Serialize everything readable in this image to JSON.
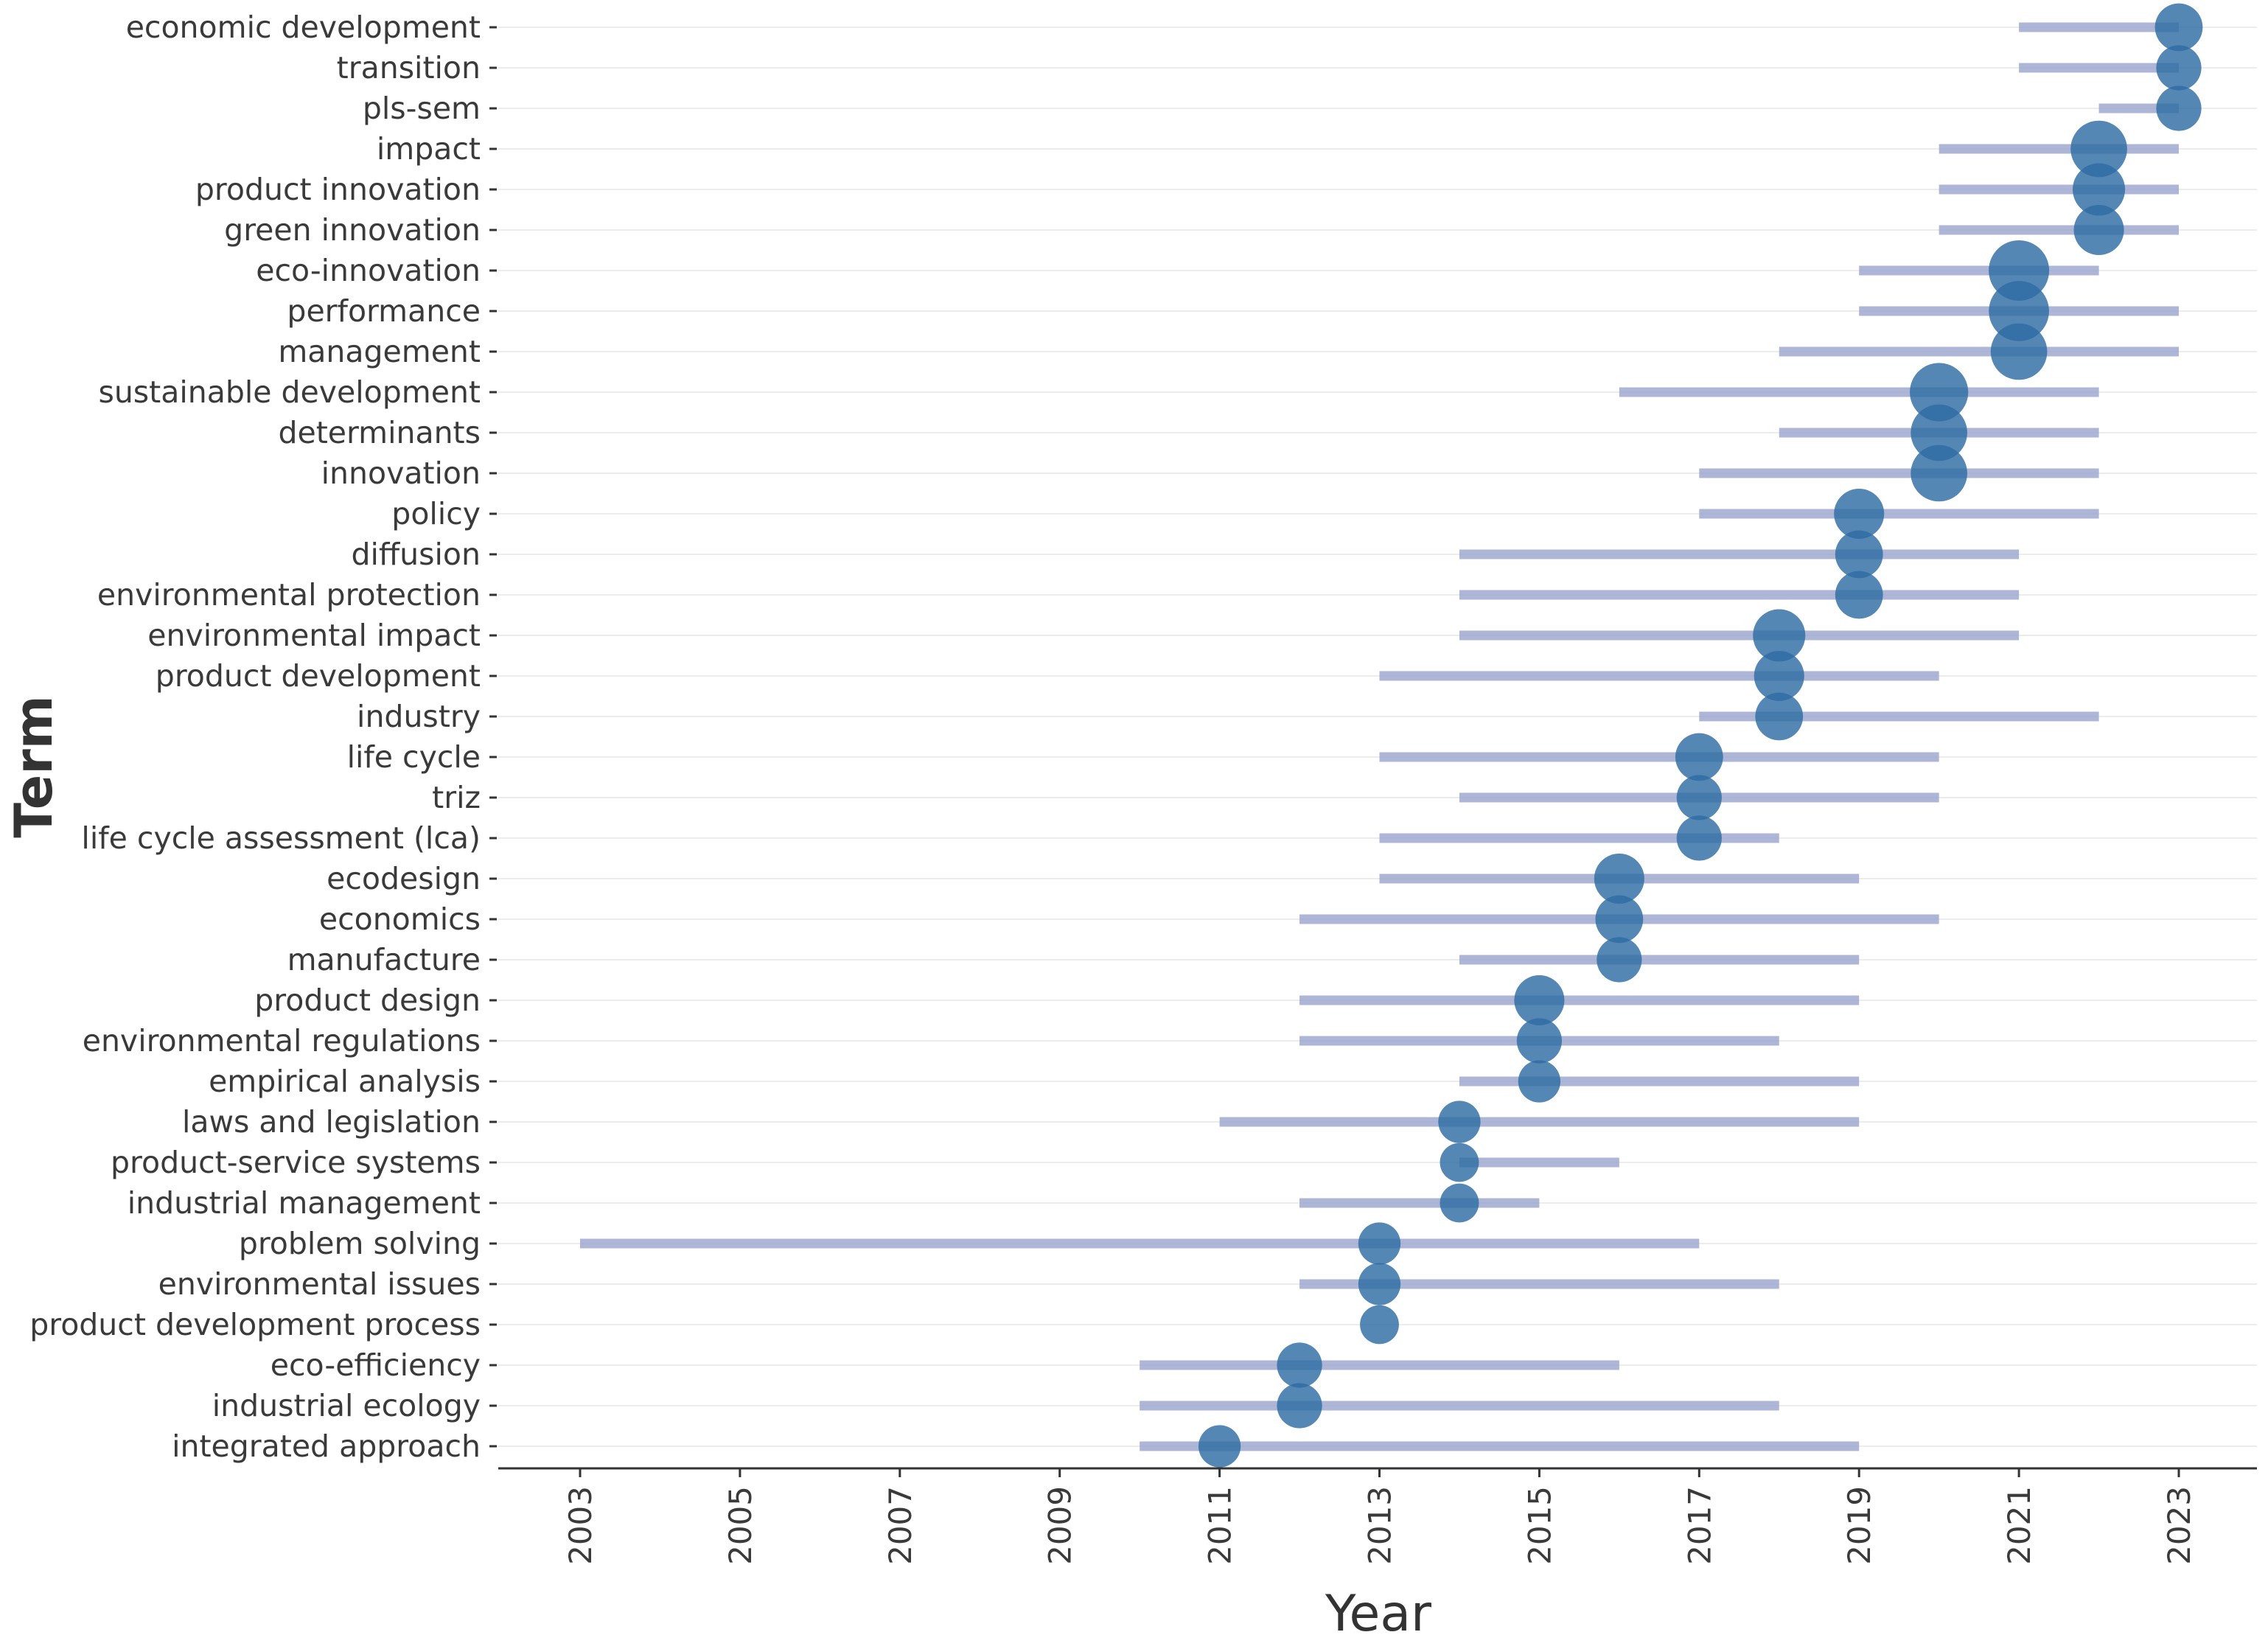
{
  "chart_data": {
    "type": "scatter",
    "subtype": "trend-topics-range",
    "title": "",
    "xlabel": "Year",
    "ylabel": "Term",
    "xlim": [
      2002,
      2024
    ],
    "x_ticks": [
      2003,
      2005,
      2007,
      2009,
      2011,
      2013,
      2015,
      2017,
      2019,
      2021,
      2023
    ],
    "grid": "horizontal",
    "colors": {
      "point": "#2e6da4",
      "range": "#9fa9cf",
      "grid": "#ececec",
      "axis": "#333333"
    },
    "terms": [
      {
        "term": "economic development",
        "q1": 2021,
        "median": 2023,
        "q3": 2023,
        "freq": 6
      },
      {
        "term": "transition",
        "q1": 2021,
        "median": 2023,
        "q3": 2023,
        "freq": 5
      },
      {
        "term": "pls-sem",
        "q1": 2022,
        "median": 2023,
        "q3": 2023,
        "freq": 5
      },
      {
        "term": "impact",
        "q1": 2020,
        "median": 2022,
        "q3": 2023,
        "freq": 10
      },
      {
        "term": "product innovation",
        "q1": 2020,
        "median": 2022,
        "q3": 2023,
        "freq": 8
      },
      {
        "term": "green innovation",
        "q1": 2020,
        "median": 2022,
        "q3": 2023,
        "freq": 7
      },
      {
        "term": "eco-innovation",
        "q1": 2019,
        "median": 2021,
        "q3": 2022,
        "freq": 20
      },
      {
        "term": "performance",
        "q1": 2019,
        "median": 2021,
        "q3": 2023,
        "freq": 12
      },
      {
        "term": "management",
        "q1": 2018,
        "median": 2021,
        "q3": 2023,
        "freq": 10
      },
      {
        "term": "sustainable development",
        "q1": 2016,
        "median": 2020,
        "q3": 2022,
        "freq": 11
      },
      {
        "term": "determinants",
        "q1": 2018,
        "median": 2020,
        "q3": 2022,
        "freq": 10
      },
      {
        "term": "innovation",
        "q1": 2017,
        "median": 2020,
        "q3": 2022,
        "freq": 10
      },
      {
        "term": "policy",
        "q1": 2017,
        "median": 2019,
        "q3": 2022,
        "freq": 7
      },
      {
        "term": "diffusion",
        "q1": 2014,
        "median": 2019,
        "q3": 2021,
        "freq": 6
      },
      {
        "term": "environmental protection",
        "q1": 2014,
        "median": 2019,
        "q3": 2021,
        "freq": 6
      },
      {
        "term": "environmental impact",
        "q1": 2014,
        "median": 2018,
        "q3": 2021,
        "freq": 8
      },
      {
        "term": "product development",
        "q1": 2013,
        "median": 2018,
        "q3": 2020,
        "freq": 7
      },
      {
        "term": "industry",
        "q1": 2017,
        "median": 2018,
        "q3": 2022,
        "freq": 6
      },
      {
        "term": "life cycle",
        "q1": 2013,
        "median": 2017,
        "q3": 2020,
        "freq": 6
      },
      {
        "term": "triz",
        "q1": 2014,
        "median": 2017,
        "q3": 2020,
        "freq": 5
      },
      {
        "term": "life cycle assessment (lca)",
        "q1": 2013,
        "median": 2017,
        "q3": 2018,
        "freq": 5
      },
      {
        "term": "ecodesign",
        "q1": 2013,
        "median": 2016,
        "q3": 2019,
        "freq": 7
      },
      {
        "term": "economics",
        "q1": 2012,
        "median": 2016,
        "q3": 2020,
        "freq": 6
      },
      {
        "term": "manufacture",
        "q1": 2014,
        "median": 2016,
        "q3": 2019,
        "freq": 5
      },
      {
        "term": "product design",
        "q1": 2012,
        "median": 2015,
        "q3": 2019,
        "freq": 7
      },
      {
        "term": "environmental regulations",
        "q1": 2012,
        "median": 2015,
        "q3": 2018,
        "freq": 5
      },
      {
        "term": "empirical analysis",
        "q1": 2014,
        "median": 2015,
        "q3": 2019,
        "freq": 4
      },
      {
        "term": "laws and legislation",
        "q1": 2011,
        "median": 2014,
        "q3": 2019,
        "freq": 4
      },
      {
        "term": "product-service systems",
        "q1": 2014,
        "median": 2014,
        "q3": 2016,
        "freq": 3
      },
      {
        "term": "industrial management",
        "q1": 2012,
        "median": 2014,
        "q3": 2015,
        "freq": 3
      },
      {
        "term": "problem solving",
        "q1": 2003,
        "median": 2013,
        "q3": 2017,
        "freq": 4
      },
      {
        "term": "environmental issues",
        "q1": 2012,
        "median": 2013,
        "q3": 2018,
        "freq": 4
      },
      {
        "term": "product development process",
        "q1": 2013,
        "median": 2013,
        "q3": 2013,
        "freq": 3
      },
      {
        "term": "eco-efficiency",
        "q1": 2010,
        "median": 2012,
        "q3": 2016,
        "freq": 5
      },
      {
        "term": "industrial ecology",
        "q1": 2010,
        "median": 2012,
        "q3": 2018,
        "freq": 5
      },
      {
        "term": "integrated approach",
        "q1": 2010,
        "median": 2011,
        "q3": 2019,
        "freq": 4
      }
    ]
  }
}
